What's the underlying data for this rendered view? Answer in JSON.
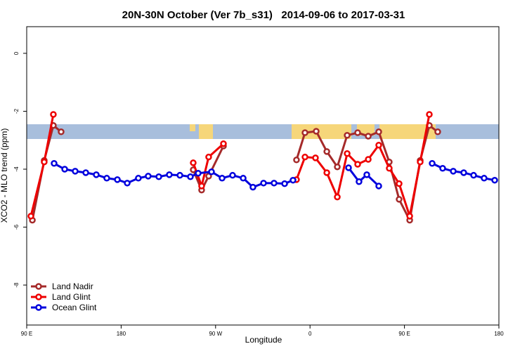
{
  "chart_data": {
    "type": "line",
    "title": "20N-30N October (Ver 7b_s31)   2014-09-06 to 2017-03-31",
    "xlabel": "Longitude",
    "ylabel": "XCO2 - MLO trend (ppm)",
    "xlim": [
      90,
      540
    ],
    "ylim": [
      -9.38,
      0.92
    ],
    "xticks": [
      {
        "value": 90,
        "label": "90 E"
      },
      180,
      {
        "value": 270,
        "label": "90 W"
      },
      {
        "value": 360,
        "label": "0"
      },
      {
        "value": 450,
        "label": "90 E"
      },
      {
        "value": 540,
        "label": "180"
      }
    ],
    "yticks": [
      0,
      -2,
      -4,
      -6,
      -8
    ],
    "legend": "bottom-left",
    "series": [
      {
        "name": "Land Nadir",
        "color": "#a52a2a",
        "x": [
          95.4,
          106.7,
          115.4,
          122.8,
          null,
          248.7,
          256.7,
          263.4,
          277.5,
          null,
          347.1,
          355.2,
          365.9,
          376.0,
          386.0,
          395.4,
          405.4,
          415.5,
          425.5,
          435.5,
          444.9,
          455.0,
          465.0,
          473.7,
          481.7
        ],
        "values": [
          -5.76,
          -3.7,
          -2.49,
          -2.71,
          null,
          -4.02,
          -4.72,
          -4.24,
          -3.2,
          null,
          -3.68,
          -2.74,
          -2.69,
          -3.39,
          -3.92,
          -2.83,
          -2.74,
          -2.86,
          -2.71,
          -3.75,
          -5.04,
          -5.76,
          -3.7,
          -2.49,
          -2.71
        ]
      },
      {
        "name": "Land Glint",
        "color": "#ee0000",
        "x": [
          94.0,
          106.7,
          115.4,
          null,
          248.7,
          256.7,
          263.4,
          277.5,
          null,
          347.1,
          355.2,
          365.2,
          376.0,
          386.0,
          395.4,
          405.4,
          415.5,
          425.5,
          435.5,
          444.9,
          455.0,
          465.0,
          473.7
        ],
        "values": [
          -5.62,
          -3.75,
          -2.11,
          null,
          -3.78,
          -4.58,
          -3.58,
          -3.12,
          null,
          -4.36,
          -3.58,
          -3.61,
          -4.12,
          -4.96,
          -3.46,
          -3.83,
          -3.66,
          -3.17,
          -3.97,
          -4.5,
          -5.62,
          -3.75,
          -2.11
        ]
      },
      {
        "name": "Ocean Glint",
        "color": "#0000dd",
        "x": [
          116.1,
          126.2,
          136.2,
          146.3,
          156.3,
          166.3,
          176.4,
          185.8,
          196.4,
          205.8,
          215.9,
          225.9,
          236.0,
          246.0,
          253.4,
          266.1,
          276.2,
          286.2,
          296.3,
          305.6,
          315.7,
          325.7,
          335.8,
          343.8,
          null,
          396.7,
          406.7,
          414.1,
          425.5,
          null,
          476.4,
          486.4,
          496.5,
          506.5,
          515.9,
          525.9,
          536.0
        ],
        "values": [
          -3.8,
          -4.0,
          -4.07,
          -4.12,
          -4.19,
          -4.31,
          -4.36,
          -4.48,
          -4.31,
          -4.24,
          -4.26,
          -4.19,
          -4.21,
          -4.26,
          -4.14,
          -4.09,
          -4.31,
          -4.21,
          -4.31,
          -4.62,
          -4.48,
          -4.48,
          -4.5,
          -4.38,
          null,
          -3.95,
          -4.43,
          -4.19,
          -4.58,
          null,
          -3.8,
          -3.97,
          -4.07,
          -4.12,
          -4.21,
          -4.31,
          -4.38
        ]
      }
    ]
  }
}
